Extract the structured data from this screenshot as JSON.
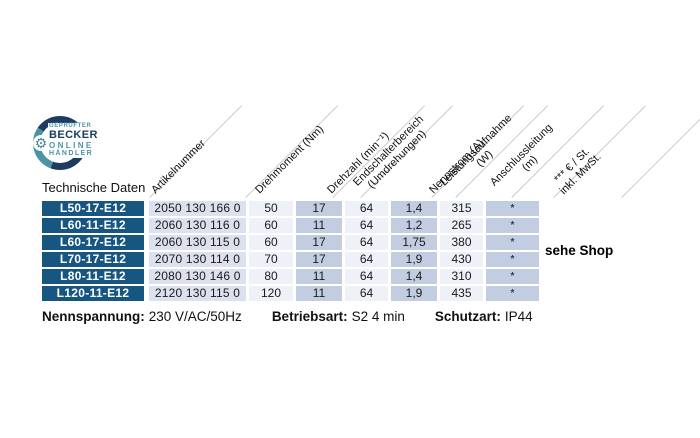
{
  "badge": {
    "line1": "GEPRÜFTER",
    "line2": "BECKER",
    "line3": "ONLINE",
    "line4": "HÄNDLER",
    "gear_glyph": "⚙"
  },
  "section_label": "Technische Daten",
  "table": {
    "headers": {
      "artikelnummer": "Artikelnummer",
      "drehmoment": "Drehmoment (Nm)",
      "drehzahl": "Drehzahl (min⁻¹)",
      "endschalterbereich_line1": "Endschalterbereich",
      "endschalterbereich_line2": "(Umdrehungen)",
      "nennstrom": "Nennstrom (A)",
      "leistungsaufnahme_line1": "Leistungsaufnahme",
      "leistungsaufnahme_line2": "(W)",
      "anschlussleitung_line1": "Anschlussleitung",
      "anschlussleitung_line2": "(m)",
      "preis_line1": "*** € / St.",
      "preis_line2": "inkl. MwSt."
    },
    "rows": [
      {
        "model": "L50-17-E12",
        "artikelnummer": "2050 130 166 0",
        "drehmoment": "50",
        "drehzahl": "17",
        "endschalterbereich": "64",
        "nennstrom": "1,4",
        "leistungsaufnahme": "315",
        "anschlussleitung": "*"
      },
      {
        "model": "L60-11-E12",
        "artikelnummer": "2060 130 116 0",
        "drehmoment": "60",
        "drehzahl": "11",
        "endschalterbereich": "64",
        "nennstrom": "1,2",
        "leistungsaufnahme": "265",
        "anschlussleitung": "*"
      },
      {
        "model": "L60-17-E12",
        "artikelnummer": "2060 130 115 0",
        "drehmoment": "60",
        "drehzahl": "17",
        "endschalterbereich": "64",
        "nennstrom": "1,75",
        "leistungsaufnahme": "380",
        "anschlussleitung": "*"
      },
      {
        "model": "L70-17-E12",
        "artikelnummer": "2070 130 114 0",
        "drehmoment": "70",
        "drehzahl": "17",
        "endschalterbereich": "64",
        "nennstrom": "1,9",
        "leistungsaufnahme": "430",
        "anschlussleitung": "*"
      },
      {
        "model": "L80-11-E12",
        "artikelnummer": "2080 130 146 0",
        "drehmoment": "80",
        "drehzahl": "11",
        "endschalterbereich": "64",
        "nennstrom": "1,4",
        "leistungsaufnahme": "310",
        "anschlussleitung": "*"
      },
      {
        "model": "L120-11-E12",
        "artikelnummer": "2120 130 115 0",
        "drehmoment": "120",
        "drehzahl": "11",
        "endschalterbereich": "64",
        "nennstrom": "1,9",
        "leistungsaufnahme": "435",
        "anschlussleitung": "*"
      }
    ],
    "price_note": "sehe Shop"
  },
  "footer": {
    "items": [
      {
        "label": "Nennspannung:",
        "value": "230 V/AC/50Hz"
      },
      {
        "label": "Betriebsart:",
        "value": "S2 4 min"
      },
      {
        "label": "Schutzart:",
        "value": "IP44"
      }
    ]
  },
  "colors": {
    "model_cell": "#175681",
    "artikelnummer_cell": "#dbe1ee",
    "light_cell": "#eef1f7",
    "blue_cell": "#c3cde1",
    "badge_navy": "#1d3c60",
    "badge_teal": "#4e93a5",
    "divider_gray": "#cccccc"
  }
}
